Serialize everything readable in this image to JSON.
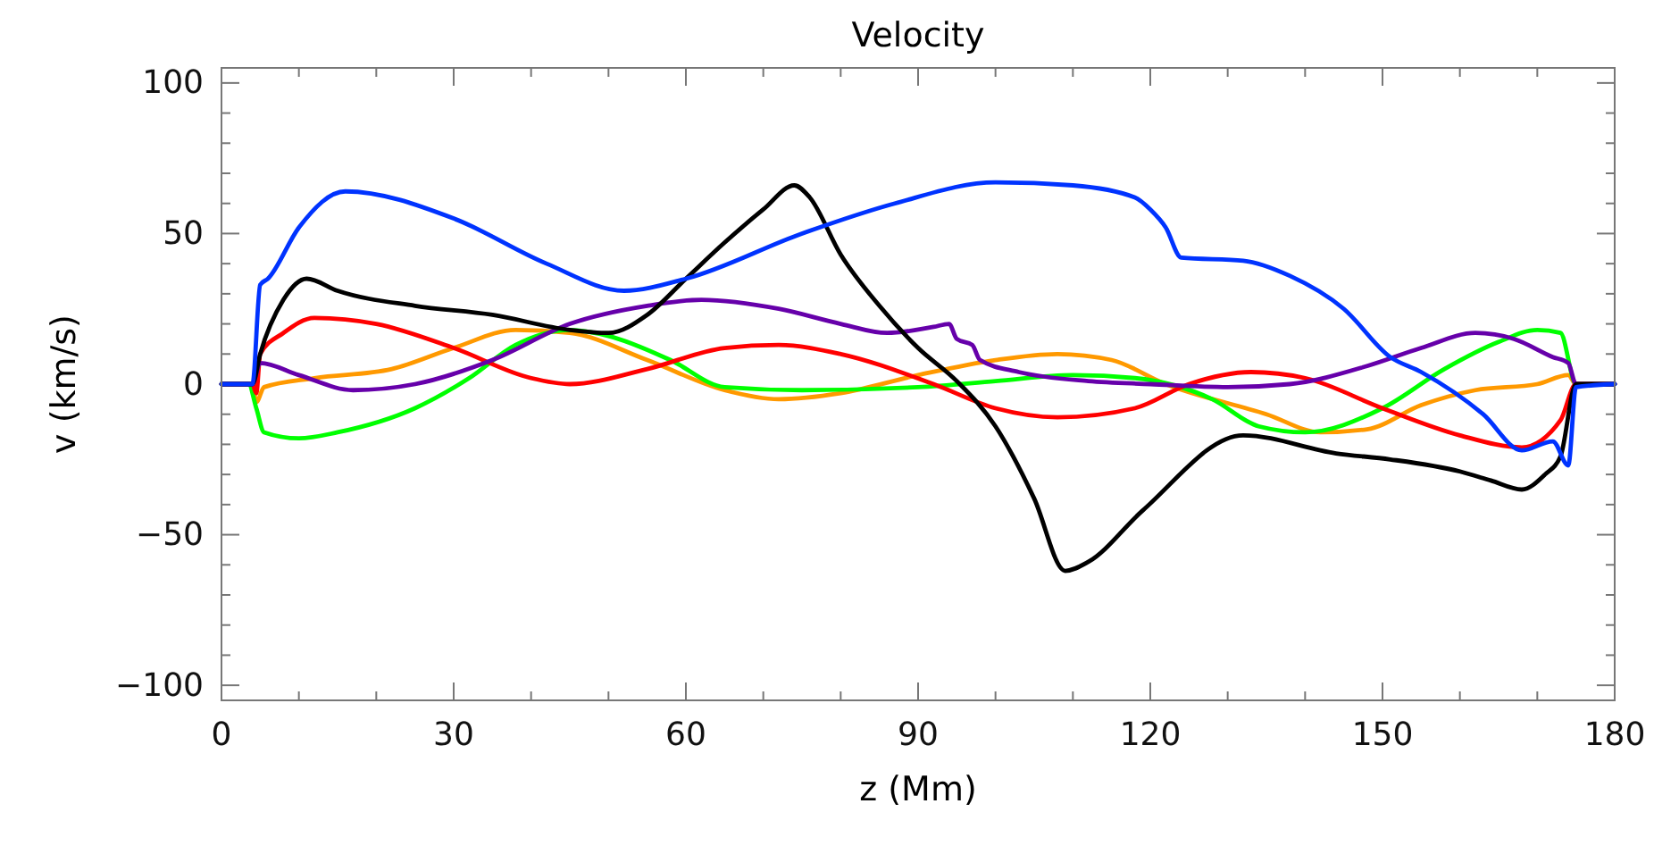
{
  "chart_data": {
    "type": "line",
    "title": "Velocity",
    "xlabel": "z (Mm)",
    "ylabel": "v (km/s)",
    "xlim": [
      0,
      180
    ],
    "ylim": [
      -105,
      105
    ],
    "xticks": [
      0,
      {
        "value": 10,
        "label": null
      },
      {
        "value": 20,
        "label": null
      },
      30,
      {
        "value": 40,
        "label": null
      },
      {
        "value": 50,
        "label": null
      },
      60,
      {
        "value": 70,
        "label": null
      },
      {
        "value": 80,
        "label": null
      },
      90,
      {
        "value": 100,
        "label": null
      },
      {
        "value": 110,
        "label": null
      },
      120,
      {
        "value": 130,
        "label": null
      },
      {
        "value": 140,
        "label": null
      },
      150,
      {
        "value": 160,
        "label": null
      },
      {
        "value": 170,
        "label": null
      },
      180
    ],
    "yticks": [
      -100,
      {
        "value": -90,
        "label": null
      },
      {
        "value": -80,
        "label": null
      },
      {
        "value": -70,
        "label": null
      },
      {
        "value": -60,
        "label": null
      },
      -50,
      {
        "value": -40,
        "label": null
      },
      {
        "value": -30,
        "label": null
      },
      {
        "value": -20,
        "label": null
      },
      {
        "value": -10,
        "label": null
      },
      0,
      {
        "value": 10,
        "label": null
      },
      {
        "value": 20,
        "label": null
      },
      {
        "value": 30,
        "label": null
      },
      {
        "value": 40,
        "label": null
      },
      50,
      {
        "value": 60,
        "label": null
      },
      {
        "value": 70,
        "label": null
      },
      {
        "value": 80,
        "label": null
      },
      {
        "value": 90,
        "label": null
      },
      100
    ],
    "marker": "none",
    "line_style": "solid",
    "series": [
      {
        "color": "#ff9900",
        "x": [
          0,
          4,
          4.5,
          5.5,
          12,
          22,
          30,
          38,
          45,
          55,
          65,
          72,
          80,
          90,
          100,
          108,
          115,
          122,
          135,
          142,
          148,
          155,
          162,
          170,
          174,
          175,
          180
        ],
        "values": [
          0,
          0,
          -6,
          -1,
          2,
          5,
          12,
          18,
          17,
          8,
          -2,
          -5,
          -3,
          3,
          8,
          10,
          8,
          0,
          -10,
          -16,
          -15,
          -7,
          -2,
          0,
          3,
          0,
          0
        ]
      },
      {
        "color": "#00ff00",
        "x": [
          0,
          3.5,
          4.5,
          5.5,
          10,
          15,
          25,
          32,
          38,
          45,
          50,
          58,
          65,
          75,
          90,
          100,
          110,
          118,
          128,
          134,
          140,
          150,
          158,
          165,
          170,
          173,
          175,
          180
        ],
        "values": [
          0,
          0,
          -8,
          -16,
          -18,
          -16,
          -8,
          2,
          13,
          18,
          16,
          8,
          -1,
          -2,
          -1,
          1,
          3,
          2,
          -5,
          -14,
          -16,
          -8,
          5,
          14,
          18,
          17,
          0,
          0
        ]
      },
      {
        "color": "#ff0000",
        "x": [
          0,
          4,
          4.5,
          5,
          8,
          12,
          20,
          30,
          40,
          45,
          55,
          65,
          72,
          80,
          92,
          100,
          108,
          118,
          125,
          133,
          140,
          150,
          160,
          168,
          173,
          175,
          180
        ],
        "values": [
          0,
          0,
          -3,
          10,
          17,
          22,
          20,
          12,
          2,
          0,
          5,
          12,
          13,
          10,
          0,
          -8,
          -11,
          -8,
          0,
          4,
          2,
          -8,
          -17,
          -21,
          -12,
          0,
          0
        ]
      },
      {
        "color": "#6600aa",
        "x": [
          0,
          4,
          5,
          10,
          17,
          25,
          35,
          45,
          55,
          62,
          72,
          80,
          86,
          92,
          94,
          95,
          97,
          98,
          103,
          112,
          120,
          130,
          138,
          148,
          155,
          162,
          167,
          172,
          174,
          175,
          180
        ],
        "values": [
          0,
          0,
          7,
          3,
          -2,
          0,
          8,
          20,
          26,
          28,
          25,
          20,
          17,
          19,
          20,
          15,
          13,
          8,
          4,
          1,
          0,
          -1,
          0,
          6,
          12,
          17,
          15,
          9,
          7,
          0,
          0
        ]
      },
      {
        "color": "#000000",
        "x": [
          0,
          4,
          5,
          8,
          11,
          15,
          25,
          35,
          45,
          50,
          55,
          60,
          65,
          70,
          74,
          76,
          80,
          85,
          90,
          95,
          100,
          105,
          109,
          112,
          119,
          132,
          144,
          151,
          160,
          164,
          168,
          171,
          173,
          175,
          180
        ],
        "values": [
          0,
          0,
          10,
          28,
          35,
          31,
          26,
          23,
          18,
          17,
          23,
          35,
          47,
          58,
          66,
          62,
          43,
          26,
          12,
          1,
          -14,
          -38,
          -62,
          -59,
          -42,
          -17,
          -23,
          -25,
          -29,
          -32,
          -35,
          -30,
          -24,
          0,
          0
        ]
      },
      {
        "color": "#0033ff",
        "x": [
          0,
          4,
          5,
          6,
          10,
          16,
          30,
          42,
          52,
          60,
          75,
          87,
          100,
          110,
          118,
          120,
          122,
          124,
          132,
          138,
          145,
          151,
          155,
          163,
          168,
          172,
          174,
          175,
          180
        ],
        "values": [
          0,
          0,
          33,
          35,
          52,
          64,
          55,
          40,
          31,
          35,
          50,
          60,
          67,
          66,
          62,
          58,
          52,
          42,
          41,
          36,
          25,
          9,
          4,
          -10,
          -22,
          -19,
          -27,
          -1,
          0
        ]
      }
    ]
  }
}
